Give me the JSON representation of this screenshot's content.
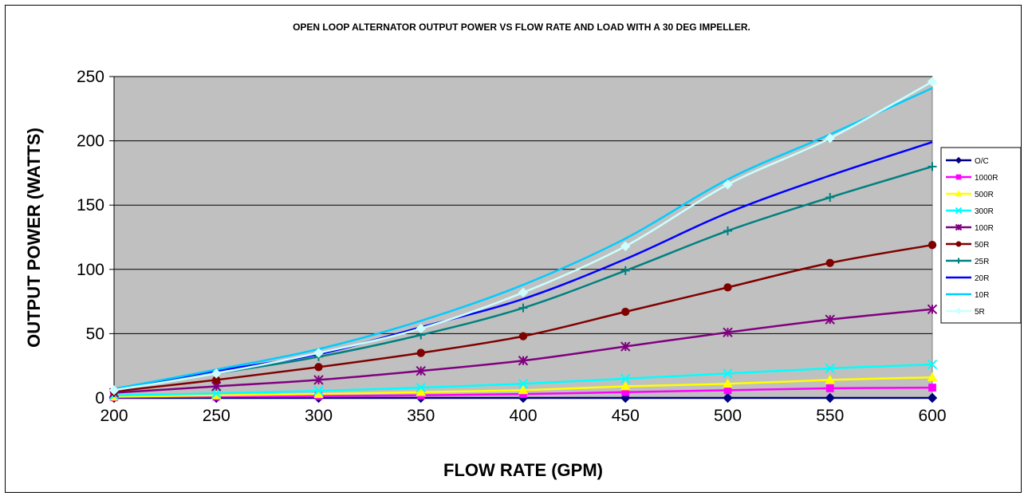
{
  "chart_data": {
    "type": "line",
    "title": "OPEN LOOP ALTERNATOR OUTPUT POWER VS FLOW RATE AND LOAD WITH A 30 DEG IMPELLER.",
    "xlabel": "FLOW RATE (GPM)",
    "ylabel": "OUTPUT POWER (WATTS)",
    "x": [
      200,
      250,
      300,
      350,
      400,
      450,
      500,
      550,
      600
    ],
    "xticks": [
      "200",
      "250",
      "300",
      "350",
      "400",
      "450",
      "500",
      "550",
      "600"
    ],
    "yticks": [
      "0",
      "50",
      "100",
      "150",
      "200",
      "250"
    ],
    "ylim": [
      0,
      250
    ],
    "xlim": [
      200,
      600
    ],
    "grid": true,
    "plot_background": "#C0C0C0",
    "legend_position": "right",
    "series": [
      {
        "name": "O/C",
        "color": "#000080",
        "marker": "diamond",
        "values": [
          0,
          0,
          0,
          0,
          0,
          0,
          0,
          0,
          0
        ]
      },
      {
        "name": "1000R",
        "color": "#FF00FF",
        "marker": "square",
        "values": [
          0.5,
          1,
          1.5,
          2,
          3,
          4.5,
          6,
          7.5,
          8
        ]
      },
      {
        "name": "500R",
        "color": "#FFFF00",
        "marker": "triangle",
        "values": [
          1,
          2,
          3,
          4.5,
          6,
          9,
          11,
          14,
          16
        ]
      },
      {
        "name": "300R",
        "color": "#00FFFF",
        "marker": "x",
        "values": [
          2,
          3.5,
          5.5,
          8,
          11,
          15,
          19,
          23,
          26
        ]
      },
      {
        "name": "100R",
        "color": "#800080",
        "marker": "star",
        "values": [
          4,
          9,
          14,
          21,
          29,
          40,
          51,
          61,
          69
        ]
      },
      {
        "name": "50R",
        "color": "#800000",
        "marker": "circle",
        "values": [
          5,
          14,
          24,
          35,
          48,
          67,
          86,
          105,
          119
        ]
      },
      {
        "name": "25R",
        "color": "#008080",
        "marker": "plus",
        "values": [
          6,
          19,
          32,
          49,
          70,
          99,
          130,
          156,
          180
        ]
      },
      {
        "name": "20R",
        "color": "#0000FF",
        "marker": "none",
        "values": [
          7,
          21,
          34,
          55,
          77,
          108,
          144,
          173,
          199
        ]
      },
      {
        "name": "10R",
        "color": "#00CCFF",
        "marker": "none",
        "values": [
          7,
          22,
          38,
          60,
          88,
          124,
          170,
          205,
          241
        ]
      },
      {
        "name": "5R",
        "color": "#CCFFFF",
        "marker": "diamond",
        "values": [
          6,
          19,
          35,
          54,
          82,
          118,
          166,
          202,
          246
        ]
      }
    ]
  }
}
